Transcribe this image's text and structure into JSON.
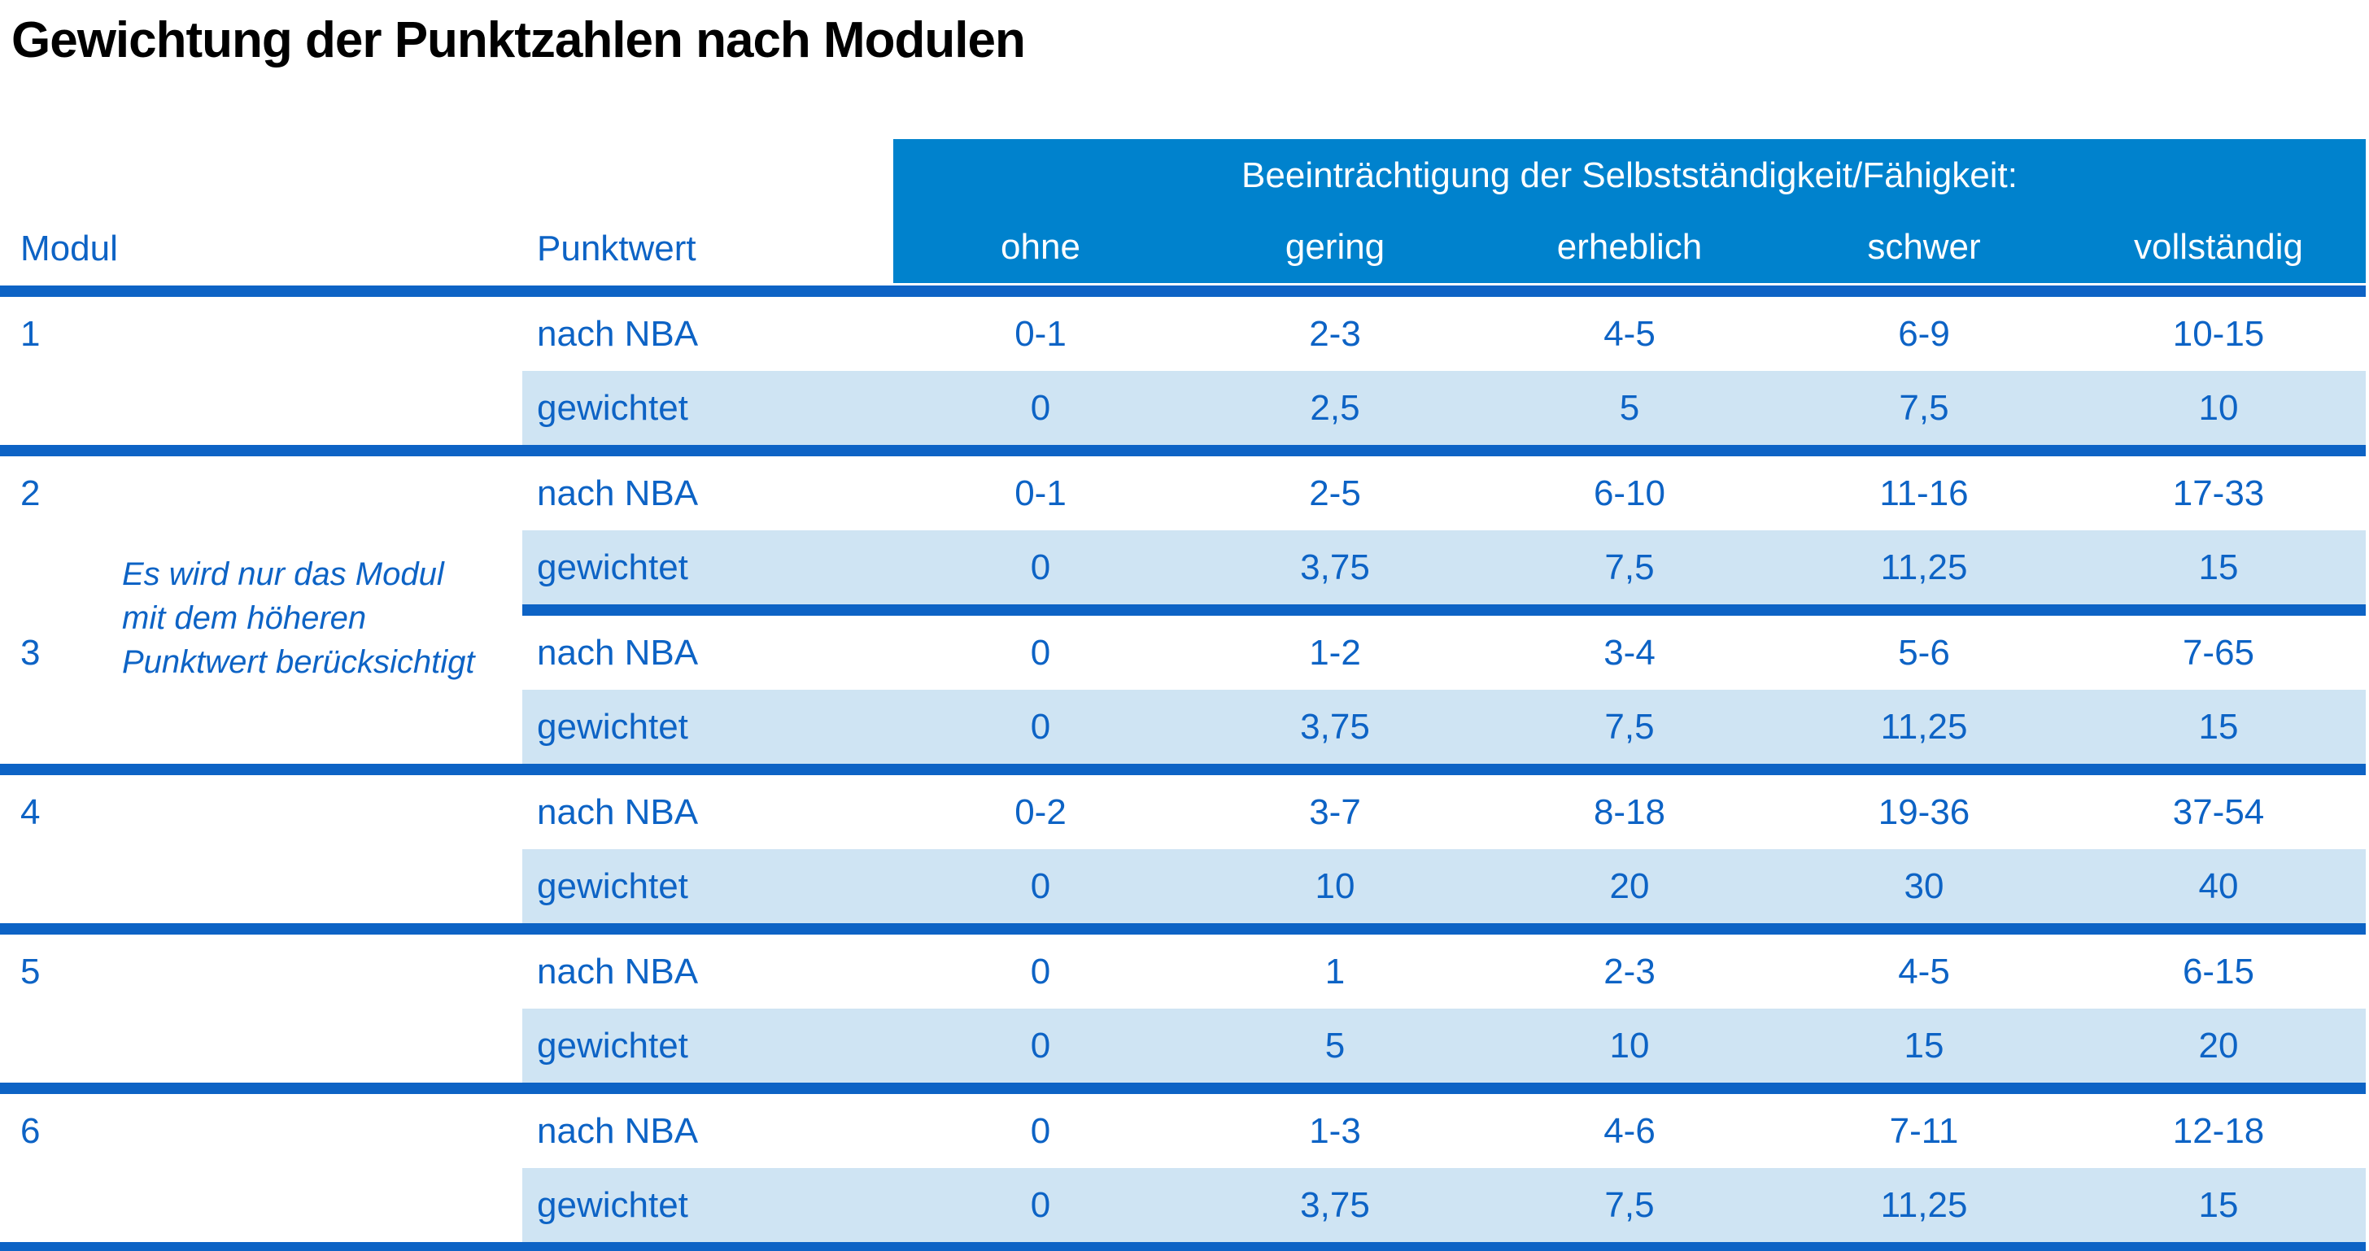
{
  "title": "Gewichtung der Punktzahlen nach Modulen",
  "colors": {
    "header_band_blue": "#0082cd",
    "divider_blue": "#0d63c5",
    "text_blue": "#0d63c5",
    "shaded_row_blue": "#cfe4f3",
    "title_color": "#000000",
    "background": "#ffffff"
  },
  "table": {
    "col_headers": {
      "modul": "Modul",
      "punktwert": "Punktwert"
    },
    "group_header": "Beeinträchtigung der Selbstständigkeit/Fähigkeit:",
    "severity_levels": [
      "ohne",
      "gering",
      "erheblich",
      "schwer",
      "vollständig"
    ],
    "row_labels": {
      "nba": "nach NBA",
      "weighted": "gewichtet"
    },
    "note_lines": [
      "Es wird nur das Modul",
      "mit dem höheren",
      "Punktwert berücksichtigt"
    ],
    "modules": [
      {
        "number": "1",
        "nba": [
          "0-1",
          "2-3",
          "4-5",
          "6-9",
          "10-15"
        ],
        "weighted": [
          "0",
          "2,5",
          "5",
          "7,5",
          "10"
        ]
      },
      {
        "number": "2",
        "nba": [
          "0-1",
          "2-5",
          "6-10",
          "11-16",
          "17-33"
        ],
        "weighted": [
          "0",
          "3,75",
          "7,5",
          "11,25",
          "15"
        ]
      },
      {
        "number": "3",
        "nba": [
          "0",
          "1-2",
          "3-4",
          "5-6",
          "7-65"
        ],
        "weighted": [
          "0",
          "3,75",
          "7,5",
          "11,25",
          "15"
        ]
      },
      {
        "number": "4",
        "nba": [
          "0-2",
          "3-7",
          "8-18",
          "19-36",
          "37-54"
        ],
        "weighted": [
          "0",
          "10",
          "20",
          "30",
          "40"
        ]
      },
      {
        "number": "5",
        "nba": [
          "0",
          "1",
          "2-3",
          "4-5",
          "6-15"
        ],
        "weighted": [
          "0",
          "5",
          "10",
          "15",
          "20"
        ]
      },
      {
        "number": "6",
        "nba": [
          "0",
          "1-3",
          "4-6",
          "7-11",
          "12-18"
        ],
        "weighted": [
          "0",
          "3,75",
          "7,5",
          "11,25",
          "15"
        ]
      }
    ]
  }
}
